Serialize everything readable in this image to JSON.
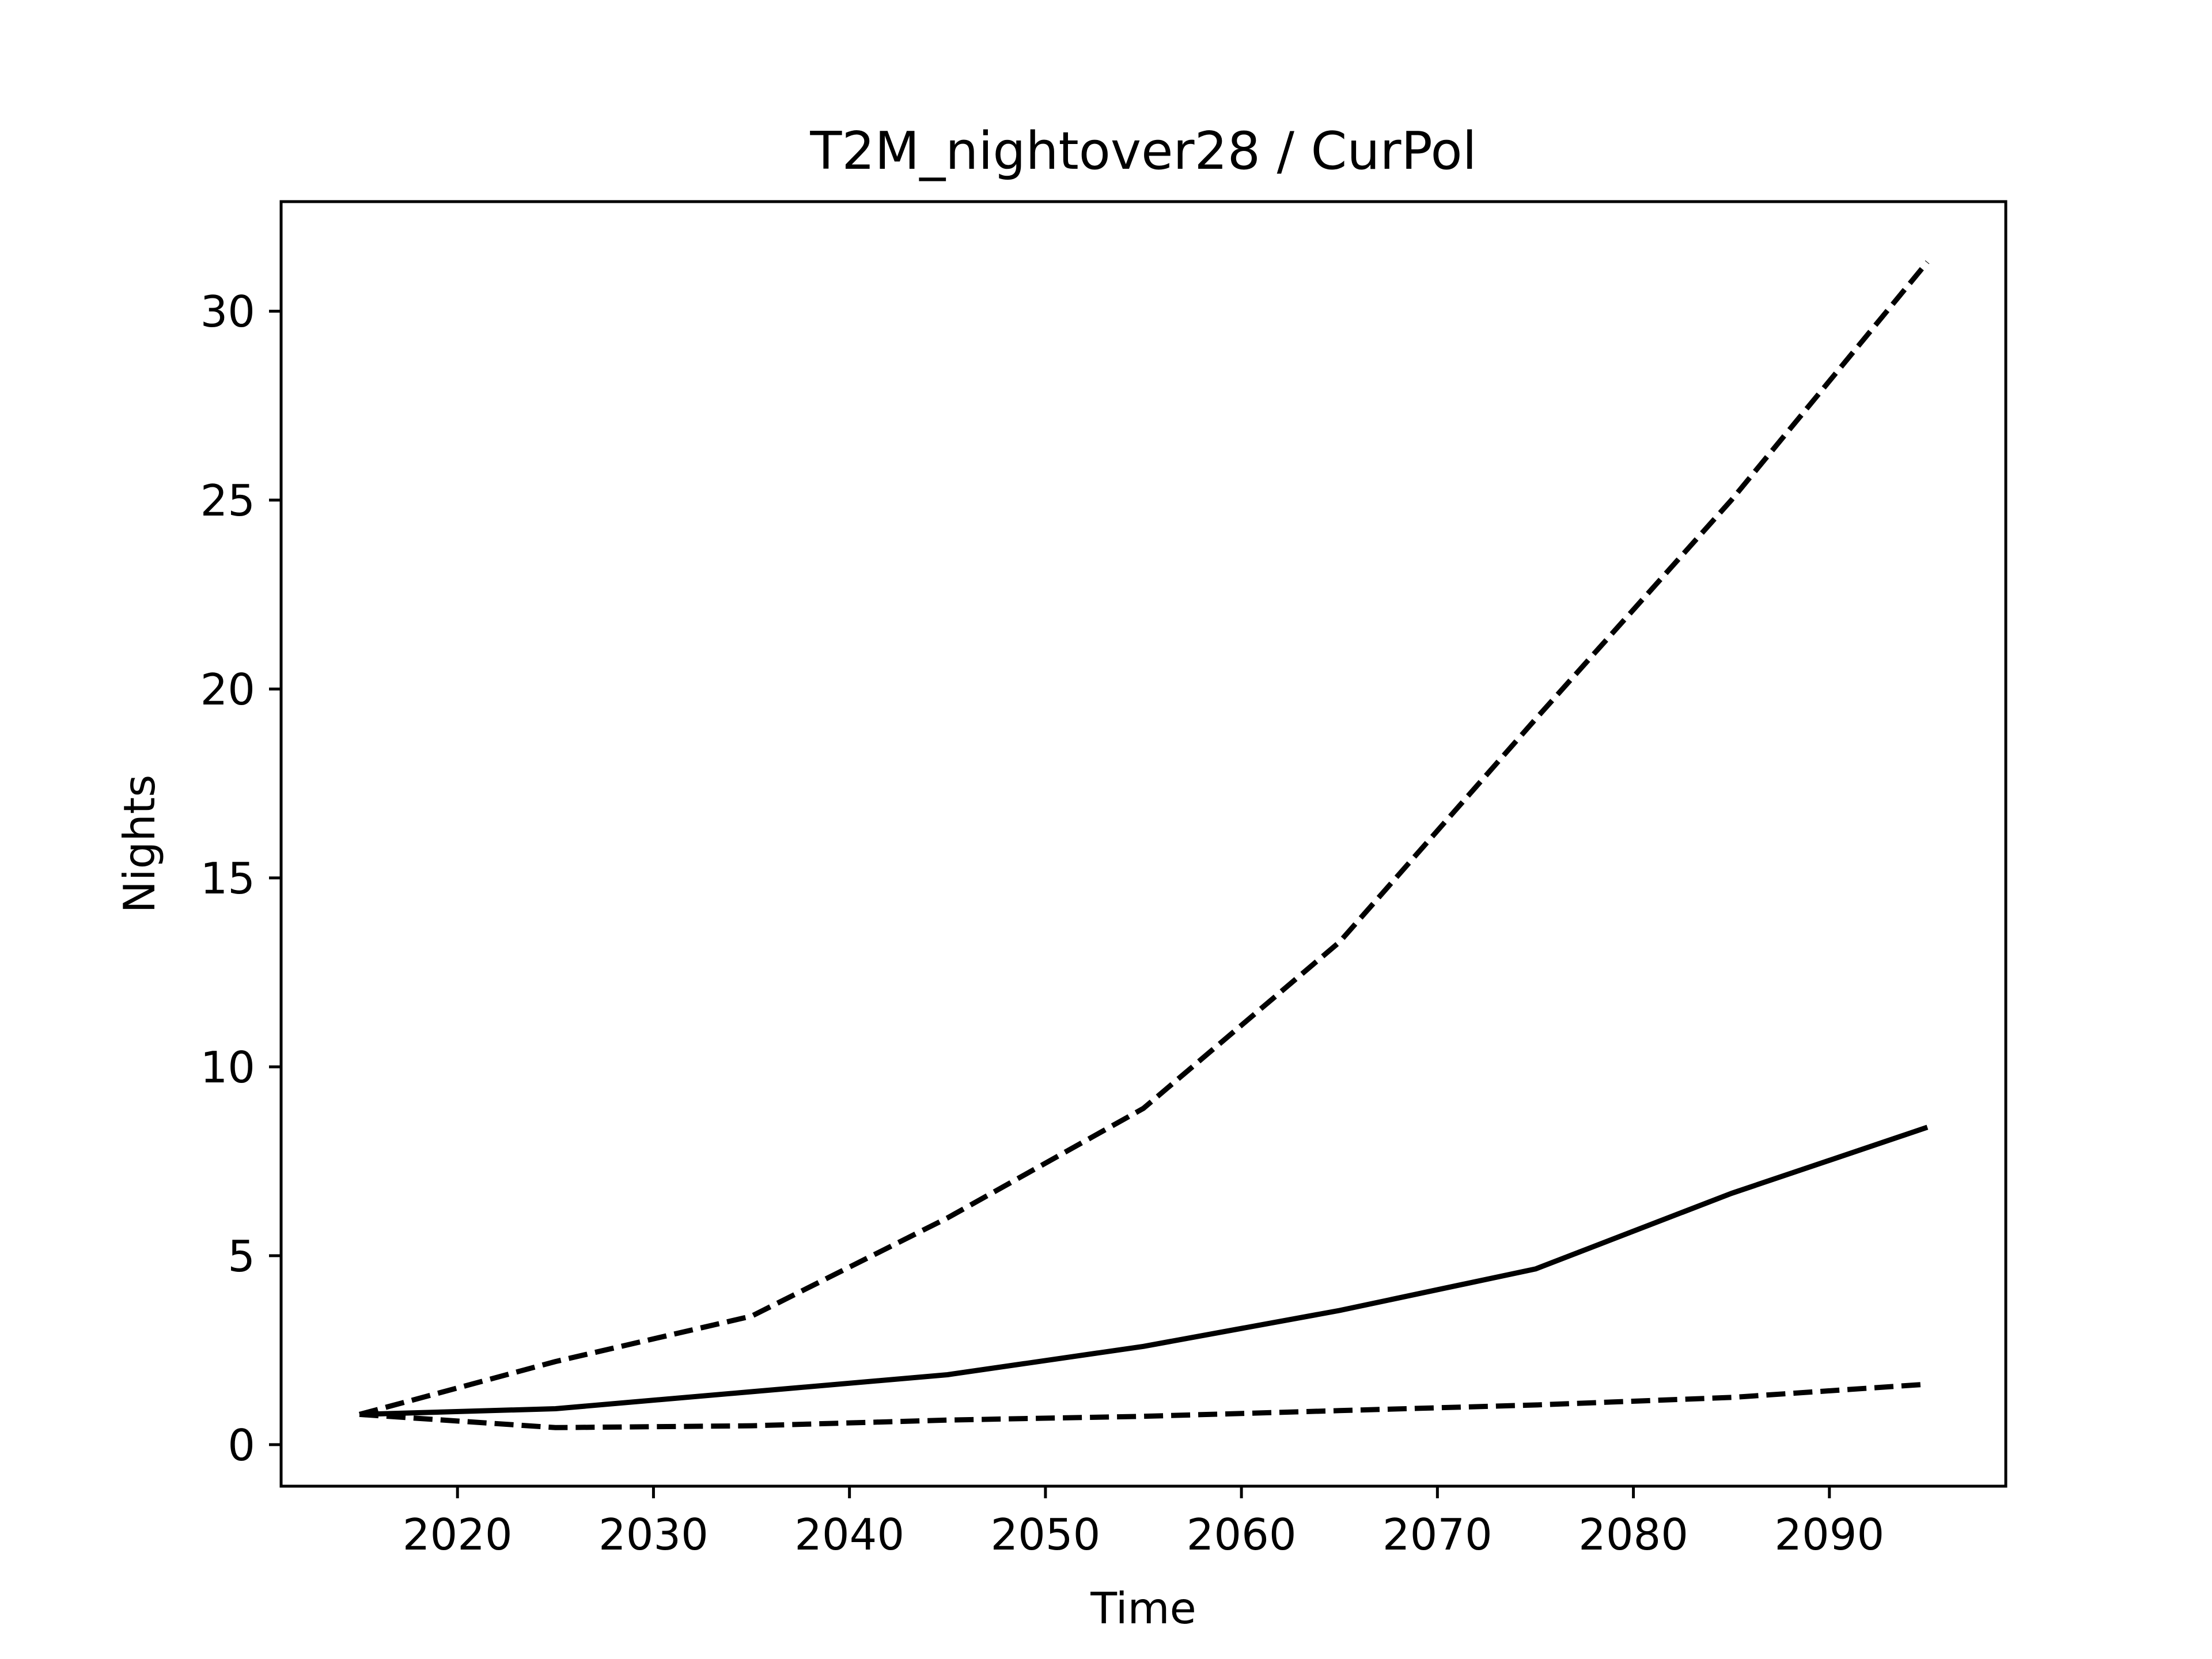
{
  "chart_data": {
    "type": "line",
    "title": "T2M_nightover28 / CurPol",
    "xlabel": "Time",
    "ylabel": "Nights",
    "x": [
      2015,
      2025,
      2035,
      2045,
      2055,
      2065,
      2075,
      2085,
      2095
    ],
    "xlim": [
      2011,
      2099
    ],
    "ylim": [
      -1.1,
      32.9
    ],
    "xticks": [
      2020,
      2030,
      2040,
      2050,
      2060,
      2070,
      2080,
      2090
    ],
    "yticks": [
      0,
      5,
      10,
      15,
      20,
      25,
      30
    ],
    "grid": false,
    "series": [
      {
        "style": "dashed",
        "color": "#000000",
        "values": [
          0.8,
          2.2,
          3.4,
          6.0,
          8.9,
          13.3,
          19.2,
          25.0,
          31.3
        ]
      },
      {
        "style": "solid",
        "color": "#000000",
        "values": [
          0.8,
          0.95,
          1.4,
          1.85,
          2.6,
          3.55,
          4.65,
          6.65,
          8.4
        ]
      },
      {
        "style": "dashed",
        "color": "#000000",
        "values": [
          0.8,
          0.45,
          0.5,
          0.65,
          0.75,
          0.9,
          1.05,
          1.25,
          1.6
        ]
      }
    ]
  }
}
